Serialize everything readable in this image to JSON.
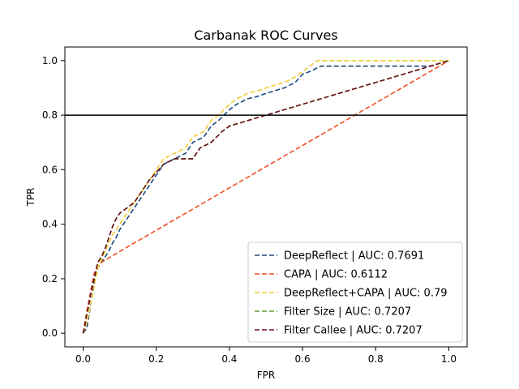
{
  "chart_data": {
    "type": "line",
    "title": "Carbanak ROC Curves",
    "xlabel": "FPR",
    "ylabel": "TPR",
    "xlim": [
      -0.05,
      1.05
    ],
    "ylim": [
      -0.05,
      1.05
    ],
    "xticks": [
      0.0,
      0.2,
      0.4,
      0.6,
      0.8,
      1.0
    ],
    "yticks": [
      0.0,
      0.2,
      0.4,
      0.6,
      0.8,
      1.0
    ],
    "xtick_labels": [
      "0.0",
      "0.2",
      "0.4",
      "0.6",
      "0.8",
      "1.0"
    ],
    "ytick_labels": [
      "0.0",
      "0.2",
      "0.4",
      "0.6",
      "0.8",
      "1.0"
    ],
    "grid": false,
    "legend_position": "lower-right",
    "reference_line": {
      "y": 0.8,
      "color": "#000000"
    },
    "series": [
      {
        "name": "DeepReflect | AUC: 0.7691",
        "color": "#1a4a7a",
        "dash": "dashed",
        "x": [
          0.0,
          0.01,
          0.015,
          0.02,
          0.025,
          0.03,
          0.035,
          0.04,
          0.05,
          0.06,
          0.07,
          0.08,
          0.09,
          0.1,
          0.12,
          0.14,
          0.16,
          0.18,
          0.2,
          0.22,
          0.25,
          0.28,
          0.3,
          0.33,
          0.35,
          0.37,
          0.4,
          0.42,
          0.45,
          0.48,
          0.5,
          0.55,
          0.58,
          0.6,
          0.62,
          0.65,
          0.7,
          0.75,
          0.8,
          0.85,
          0.9,
          0.95,
          1.0
        ],
        "y": [
          0.0,
          0.02,
          0.06,
          0.1,
          0.14,
          0.18,
          0.22,
          0.24,
          0.26,
          0.28,
          0.3,
          0.33,
          0.35,
          0.38,
          0.42,
          0.46,
          0.5,
          0.54,
          0.58,
          0.62,
          0.64,
          0.66,
          0.7,
          0.72,
          0.76,
          0.78,
          0.82,
          0.84,
          0.86,
          0.87,
          0.88,
          0.9,
          0.92,
          0.95,
          0.96,
          0.98,
          0.98,
          0.98,
          0.98,
          0.98,
          0.98,
          0.98,
          1.0
        ]
      },
      {
        "name": "CAPA | AUC: 0.6112",
        "color": "#f04e23",
        "dash": "dashed",
        "x": [
          0.0,
          0.01,
          0.02,
          0.03,
          0.05,
          0.1,
          1.0
        ],
        "y": [
          0.0,
          0.08,
          0.15,
          0.22,
          0.26,
          0.3,
          1.0
        ]
      },
      {
        "name": "DeepReflect+CAPA | AUC: 0.79",
        "color": "#f2cc33",
        "dash": "dashed",
        "x": [
          0.0,
          0.01,
          0.02,
          0.03,
          0.04,
          0.05,
          0.06,
          0.07,
          0.08,
          0.1,
          0.12,
          0.14,
          0.16,
          0.18,
          0.2,
          0.22,
          0.25,
          0.28,
          0.3,
          0.33,
          0.35,
          0.37,
          0.4,
          0.42,
          0.45,
          0.48,
          0.5,
          0.55,
          0.58,
          0.6,
          0.62,
          0.64,
          0.7,
          0.75,
          0.8,
          0.85,
          0.9,
          0.95,
          1.0
        ],
        "y": [
          0.0,
          0.04,
          0.1,
          0.17,
          0.24,
          0.27,
          0.3,
          0.33,
          0.36,
          0.4,
          0.44,
          0.48,
          0.52,
          0.56,
          0.6,
          0.64,
          0.66,
          0.68,
          0.72,
          0.74,
          0.78,
          0.8,
          0.84,
          0.86,
          0.88,
          0.89,
          0.9,
          0.92,
          0.94,
          0.96,
          0.98,
          1.0,
          1.0,
          1.0,
          1.0,
          1.0,
          1.0,
          1.0,
          1.0
        ]
      },
      {
        "name": "Filter Size | AUC: 0.7207",
        "color": "#5a9e2f",
        "dash": "dashed",
        "x": [
          0.0,
          0.005,
          0.01,
          0.015,
          0.02,
          0.03,
          0.04,
          0.05,
          0.06,
          0.07,
          0.08,
          0.09,
          0.1,
          0.12,
          0.14,
          0.16,
          0.18,
          0.2,
          0.22,
          0.25,
          0.3,
          0.32,
          0.35,
          0.38,
          0.4,
          0.45,
          0.5,
          0.55,
          0.6,
          0.65,
          0.7,
          0.75,
          0.8,
          0.85,
          0.9,
          0.95,
          1.0
        ],
        "y": [
          0.0,
          0.03,
          0.07,
          0.1,
          0.14,
          0.2,
          0.26,
          0.28,
          0.31,
          0.35,
          0.39,
          0.42,
          0.44,
          0.46,
          0.48,
          0.52,
          0.56,
          0.59,
          0.62,
          0.64,
          0.64,
          0.68,
          0.7,
          0.74,
          0.76,
          0.78,
          0.8,
          0.82,
          0.84,
          0.86,
          0.88,
          0.9,
          0.92,
          0.94,
          0.96,
          0.98,
          1.0
        ]
      },
      {
        "name": "Filter Callee | AUC: 0.7207",
        "color": "#6b0f1a",
        "dash": "dashed",
        "x": [
          0.0,
          0.005,
          0.01,
          0.015,
          0.02,
          0.03,
          0.04,
          0.05,
          0.06,
          0.07,
          0.08,
          0.09,
          0.1,
          0.12,
          0.14,
          0.16,
          0.18,
          0.2,
          0.22,
          0.25,
          0.3,
          0.32,
          0.35,
          0.38,
          0.4,
          0.45,
          0.5,
          0.55,
          0.6,
          0.65,
          0.7,
          0.75,
          0.8,
          0.85,
          0.9,
          0.95,
          1.0
        ],
        "y": [
          0.0,
          0.03,
          0.07,
          0.1,
          0.14,
          0.2,
          0.26,
          0.28,
          0.31,
          0.35,
          0.39,
          0.42,
          0.44,
          0.46,
          0.48,
          0.52,
          0.56,
          0.59,
          0.62,
          0.64,
          0.64,
          0.68,
          0.7,
          0.74,
          0.76,
          0.78,
          0.8,
          0.82,
          0.84,
          0.86,
          0.88,
          0.9,
          0.92,
          0.94,
          0.96,
          0.98,
          1.0
        ]
      }
    ]
  }
}
